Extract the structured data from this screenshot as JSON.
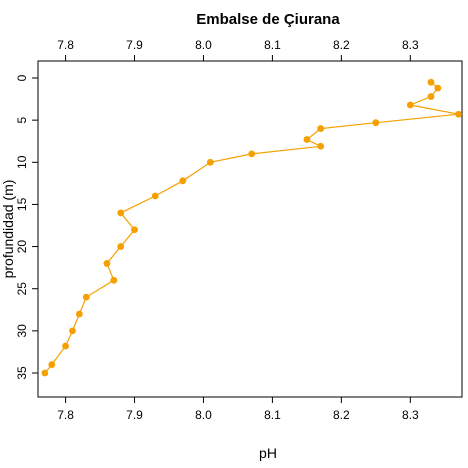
{
  "chart_data": {
    "type": "line",
    "title": "Embalse de Çiurana",
    "xlabel": "pH",
    "ylabel": "profundidad (m)",
    "xlim": [
      7.76,
      8.375
    ],
    "ylim": [
      0,
      35
    ],
    "y_reversed": true,
    "x_axes": [
      "bottom",
      "top"
    ],
    "xticks": [
      7.8,
      7.9,
      8.0,
      8.1,
      8.2,
      8.3
    ],
    "yticks": [
      0,
      5,
      10,
      15,
      20,
      25,
      30,
      35
    ],
    "grid": false,
    "color": "#f5a000",
    "series": [
      {
        "x": [
          8.33,
          8.34,
          8.33,
          8.3,
          8.37,
          8.25,
          8.17,
          8.15,
          8.17,
          8.07,
          8.01,
          7.97,
          7.93,
          7.88,
          7.9,
          7.88,
          7.86,
          7.87,
          7.83,
          7.82,
          7.81,
          7.8,
          7.78,
          7.77
        ],
        "y": [
          0.5,
          1.2,
          2.2,
          3.2,
          4.3,
          5.3,
          6.0,
          7.3,
          8.1,
          9.0,
          10.0,
          12.2,
          14.0,
          16.0,
          18.0,
          20.0,
          22.0,
          24.0,
          26.0,
          28.0,
          30.0,
          31.8,
          34.0,
          35.0
        ]
      }
    ]
  }
}
